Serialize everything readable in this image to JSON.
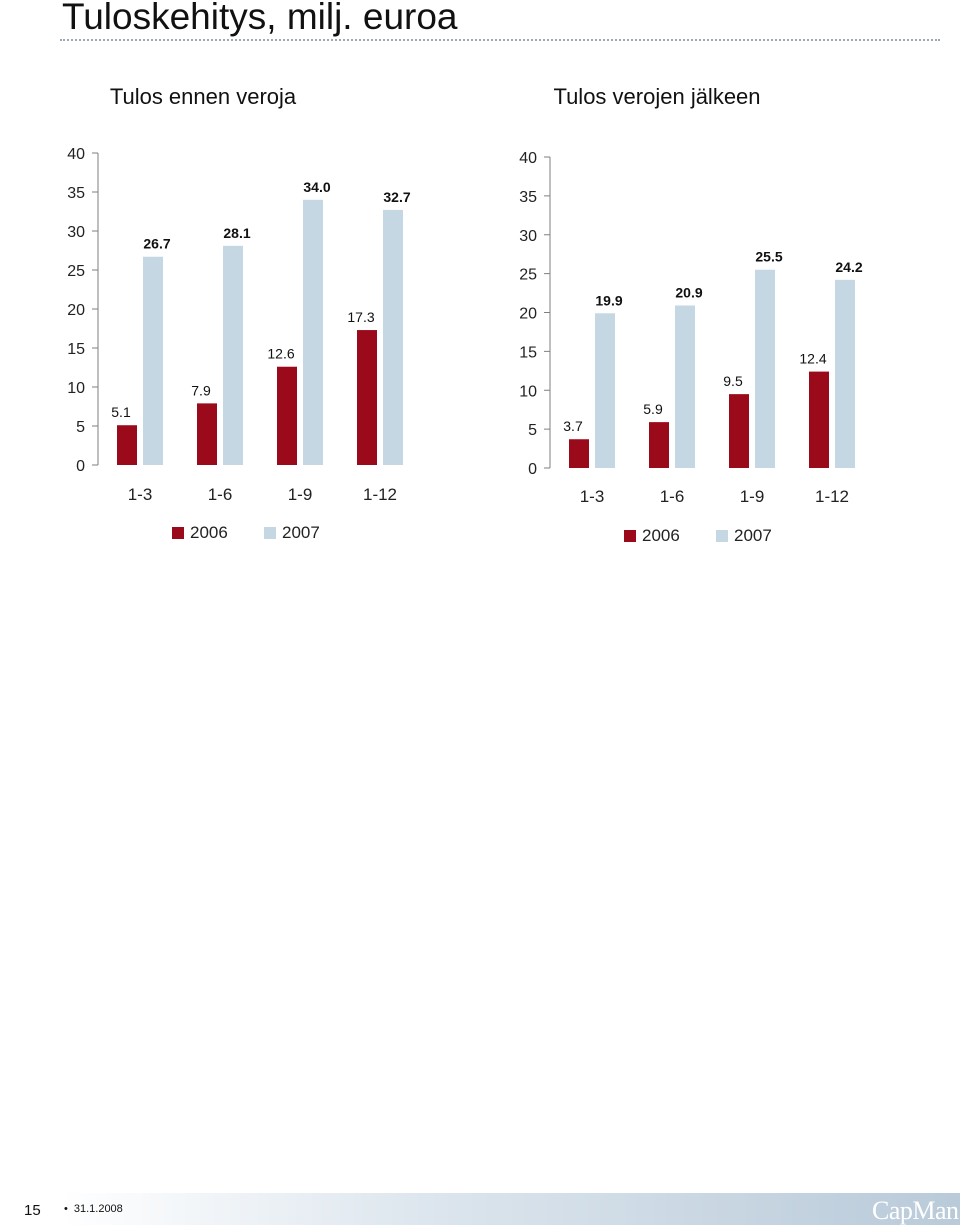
{
  "page": {
    "title": "Tuloskehitys, milj. euroa",
    "page_number": "15",
    "date": "31.1.2008",
    "logo_text": "CapMan"
  },
  "colors": {
    "series_2006": "#9b0a1a",
    "series_2007": "#c5d7e3",
    "axis": "#7f7f7f"
  },
  "chart_data": [
    {
      "type": "bar",
      "title": "Tulos ennen veroja",
      "categories": [
        "1-3",
        "1-6",
        "1-9",
        "1-12"
      ],
      "series": [
        {
          "name": "2006",
          "values": [
            5.1,
            7.9,
            12.6,
            17.3
          ],
          "labels": [
            "5.1",
            "7.9",
            "12.6",
            "17.3"
          ]
        },
        {
          "name": "2007",
          "values": [
            26.7,
            28.1,
            34.0,
            32.7
          ],
          "labels": [
            "26.7",
            "28.1",
            "34.0",
            "32.7"
          ]
        }
      ],
      "ylim": [
        0,
        40
      ],
      "yticks": [
        "0",
        "5",
        "10",
        "15",
        "20",
        "25",
        "30",
        "35",
        "40"
      ],
      "legend": "bottom",
      "grid": false
    },
    {
      "type": "bar",
      "title": "Tulos verojen jälkeen",
      "categories": [
        "1-3",
        "1-6",
        "1-9",
        "1-12"
      ],
      "series": [
        {
          "name": "2006",
          "values": [
            3.7,
            5.9,
            9.5,
            12.4
          ],
          "labels": [
            "3.7",
            "5.9",
            "9.5",
            "12.4"
          ]
        },
        {
          "name": "2007",
          "values": [
            19.9,
            20.9,
            25.5,
            24.2
          ],
          "labels": [
            "19.9",
            "20.9",
            "25.5",
            "24.2"
          ]
        }
      ],
      "ylim": [
        0,
        40
      ],
      "yticks": [
        "0",
        "5",
        "10",
        "15",
        "20",
        "25",
        "30",
        "35",
        "40"
      ],
      "legend": "bottom",
      "grid": false
    }
  ]
}
